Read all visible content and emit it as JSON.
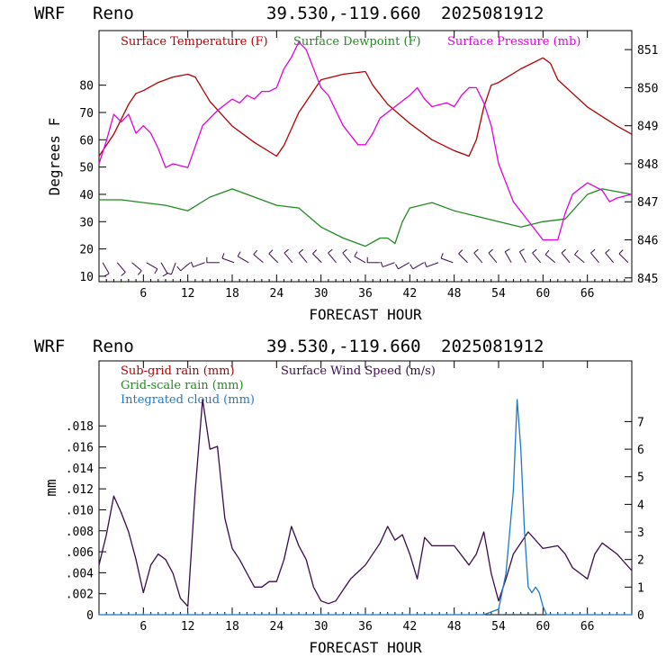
{
  "chart_data": [
    {
      "type": "line",
      "header": {
        "model": "WRF",
        "location": "Reno",
        "coords": "39.530,-119.660",
        "date": "2025081912"
      },
      "xlabel": "FORECAST HOUR",
      "ylabel": "Degrees F",
      "xlim": [
        0,
        72
      ],
      "ylim": [
        8,
        100
      ],
      "y2lim": [
        844.9,
        851.5
      ],
      "xticks": [
        6,
        12,
        18,
        24,
        30,
        36,
        42,
        48,
        54,
        60,
        66
      ],
      "xtick_labels": [
        "6",
        "12",
        "18",
        "24",
        "30",
        "36",
        "42",
        "48",
        "54",
        "60",
        "66"
      ],
      "yticks": [
        10,
        20,
        30,
        40,
        50,
        60,
        70,
        80
      ],
      "ytick_labels": [
        "10",
        "20",
        "30",
        "40",
        "50",
        "60",
        "70",
        "80"
      ],
      "y2ticks": [
        845,
        846,
        847,
        848,
        849,
        850,
        851
      ],
      "y2tick_labels": [
        "845",
        "846",
        "847",
        "848",
        "849",
        "850",
        "851"
      ],
      "legend": [
        {
          "name": "Surface Temperature (F)",
          "color": "#b00000"
        },
        {
          "name": "Surface Dewpoint (F)",
          "color": "#1f8a1f"
        },
        {
          "name": "Surface Pressure (mb)",
          "color": "#e000e0"
        }
      ],
      "series": [
        {
          "name": "Surface Temperature (F)",
          "axis": "left",
          "color": "#b00000",
          "x": [
            0,
            2,
            4,
            5,
            6,
            8,
            10,
            12,
            13,
            15,
            18,
            21,
            24,
            25,
            27,
            30,
            33,
            36,
            37,
            39,
            42,
            45,
            48,
            50,
            51,
            52,
            53,
            54,
            57,
            60,
            61,
            62,
            66,
            70,
            72
          ],
          "y": [
            54,
            62,
            73,
            77,
            78,
            81,
            83,
            84,
            83,
            74,
            65,
            59,
            54,
            58,
            70,
            82,
            84,
            85,
            80,
            73,
            66,
            60,
            56,
            54,
            60,
            72,
            80,
            81,
            86,
            90,
            88,
            82,
            72,
            65,
            62
          ]
        },
        {
          "name": "Surface Dewpoint (F)",
          "axis": "left",
          "color": "#1f8a1f",
          "x": [
            0,
            3,
            6,
            9,
            12,
            15,
            18,
            21,
            24,
            27,
            30,
            33,
            36,
            38,
            39,
            40,
            41,
            42,
            45,
            48,
            51,
            54,
            57,
            60,
            63,
            66,
            68,
            72
          ],
          "y": [
            38,
            38,
            37,
            36,
            34,
            39,
            42,
            39,
            36,
            35,
            28,
            24,
            21,
            24,
            24,
            22,
            30,
            35,
            37,
            34,
            32,
            30,
            28,
            30,
            31,
            40,
            42,
            40
          ]
        },
        {
          "name": "Surface Pressure (mb)",
          "axis": "right",
          "color": "#e000e0",
          "x": [
            0,
            1,
            2,
            3,
            4,
            5,
            6,
            7,
            8,
            9,
            10,
            12,
            14,
            16,
            18,
            19,
            20,
            21,
            22,
            23,
            24,
            25,
            26,
            27,
            28,
            29,
            30,
            31,
            33,
            35,
            36,
            37,
            38,
            40,
            42,
            43,
            44,
            45,
            47,
            48,
            49,
            50,
            51,
            52,
            53,
            54,
            56,
            58,
            60,
            62,
            63,
            64,
            66,
            68,
            69,
            70,
            72
          ],
          "y": [
            848.0,
            848.6,
            849.3,
            849.1,
            849.3,
            848.8,
            849.0,
            848.8,
            848.4,
            847.9,
            848.0,
            847.9,
            849.0,
            849.4,
            849.7,
            849.6,
            849.8,
            849.7,
            849.9,
            849.9,
            850.0,
            850.5,
            850.8,
            851.2,
            851.0,
            850.5,
            850.0,
            849.8,
            849.0,
            848.5,
            848.5,
            848.8,
            849.2,
            849.5,
            849.8,
            850.0,
            849.7,
            849.5,
            849.6,
            849.5,
            849.8,
            850.0,
            850.0,
            849.6,
            849.0,
            848.0,
            847.0,
            846.5,
            846.0,
            846.0,
            846.7,
            847.2,
            847.5,
            847.3,
            847.0,
            847.1,
            847.2
          ]
        }
      ],
      "wind_barbs": {
        "row_y": 15,
        "direction_deg": [
          150,
          140,
          130,
          120,
          150,
          200,
          230,
          250,
          270,
          290,
          300,
          310,
          315,
          320,
          320,
          315,
          320,
          320,
          300,
          270,
          250,
          240,
          240,
          250,
          290,
          315,
          320,
          320,
          330,
          330,
          320,
          310,
          320,
          310,
          320,
          320,
          315
        ]
      }
    },
    {
      "type": "line",
      "header": {
        "model": "WRF",
        "location": "Reno",
        "coords": "39.530,-119.660",
        "date": "2025081912"
      },
      "xlabel": "FORECAST HOUR",
      "ylabel": "mm",
      "xlim": [
        0,
        72
      ],
      "ylim": [
        0,
        0.0242
      ],
      "y2lim": [
        0,
        9.2
      ],
      "xticks": [
        6,
        12,
        18,
        24,
        30,
        36,
        42,
        48,
        54,
        60,
        66
      ],
      "xtick_labels": [
        "6",
        "12",
        "18",
        "24",
        "30",
        "36",
        "42",
        "48",
        "54",
        "60",
        "66"
      ],
      "yticks": [
        0,
        0.002,
        0.004,
        0.006,
        0.008,
        0.01,
        0.012,
        0.014,
        0.016,
        0.018
      ],
      "ytick_labels": [
        "0",
        ".002",
        ".004",
        ".006",
        ".008",
        ".010",
        ".012",
        ".014",
        ".016",
        ".018"
      ],
      "y2ticks": [
        0,
        1,
        2,
        3,
        4,
        5,
        6,
        7
      ],
      "y2tick_labels": [
        "0",
        "1",
        "2",
        "3",
        "4",
        "5",
        "6",
        "7"
      ],
      "legend": [
        {
          "name": "Sub-grid rain (mm)",
          "color": "#b00000"
        },
        {
          "name": "Grid-scale rain (mm)",
          "color": "#1f8a1f"
        },
        {
          "name": "Integrated cloud (mm)",
          "color": "#1e78c8"
        },
        {
          "name": "Surface Wind Speed (m/s)",
          "color": "#3a0a4a"
        }
      ],
      "series": [
        {
          "name": "Surface Wind Speed (m/s)",
          "axis": "right",
          "color": "#3a0a4a",
          "x": [
            0,
            1,
            2,
            3,
            4,
            5,
            6,
            7,
            8,
            9,
            10,
            11,
            12,
            13,
            14,
            15,
            16,
            17,
            18,
            19,
            20,
            21,
            22,
            23,
            24,
            25,
            26,
            27,
            28,
            29,
            30,
            31,
            32,
            33,
            34,
            36,
            38,
            39,
            40,
            41,
            42,
            43,
            44,
            45,
            46,
            48,
            50,
            51,
            52,
            53,
            54,
            55,
            56,
            58,
            60,
            62,
            63,
            64,
            65,
            66,
            67,
            68,
            70,
            72
          ],
          "y": [
            1.8,
            2.9,
            4.3,
            3.7,
            3.0,
            2.0,
            0.8,
            1.8,
            2.2,
            2.0,
            1.5,
            0.6,
            0.3,
            4.5,
            7.8,
            6.0,
            6.1,
            3.5,
            2.4,
            2.0,
            1.5,
            1.0,
            1.0,
            1.2,
            1.2,
            2.0,
            3.2,
            2.5,
            2.0,
            1.0,
            0.5,
            0.4,
            0.5,
            0.9,
            1.3,
            1.8,
            2.6,
            3.2,
            2.7,
            2.9,
            2.2,
            1.3,
            2.8,
            2.5,
            2.5,
            2.5,
            1.8,
            2.2,
            3.0,
            1.5,
            0.5,
            1.3,
            2.2,
            3.0,
            2.4,
            2.5,
            2.2,
            1.7,
            1.5,
            1.3,
            2.2,
            2.6,
            2.2,
            1.6
          ]
        },
        {
          "name": "Integrated cloud (mm)",
          "axis": "right",
          "color": "#1e78c8",
          "x": [
            0,
            52,
            54,
            55,
            56,
            56.5,
            57,
            57.5,
            58,
            58.5,
            59,
            59.5,
            60,
            60.5,
            72
          ],
          "y": [
            0,
            0,
            0.2,
            1.5,
            4.5,
            7.8,
            6.0,
            3.0,
            1.0,
            0.8,
            1.0,
            0.8,
            0.3,
            0,
            0
          ]
        }
      ]
    }
  ]
}
